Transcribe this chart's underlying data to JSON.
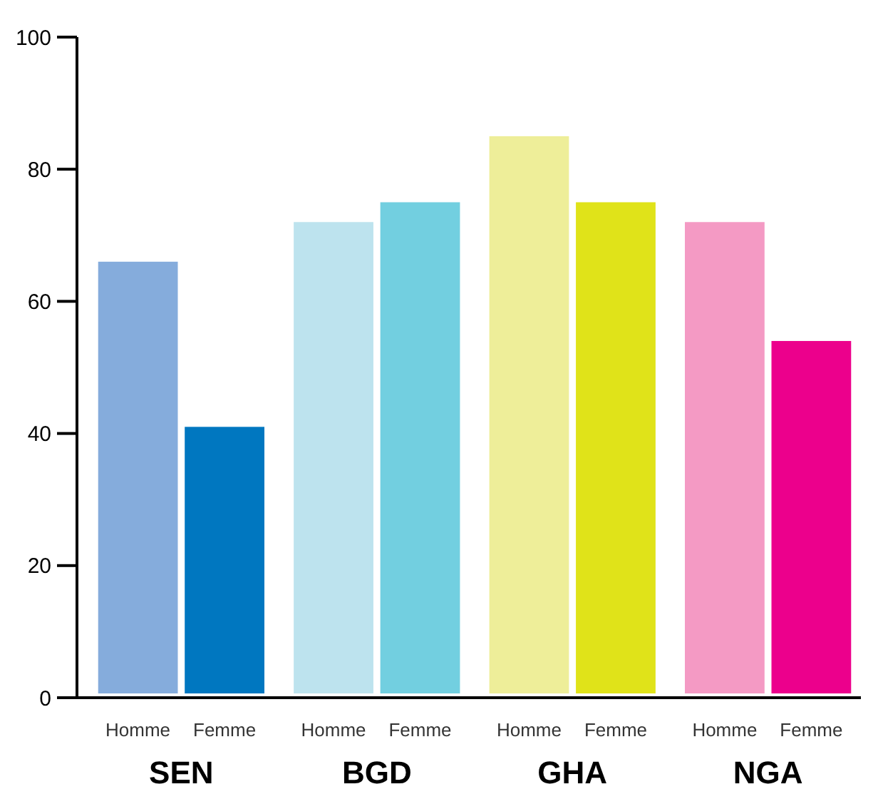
{
  "chart_data": {
    "type": "bar",
    "categories": [
      "SEN",
      "BGD",
      "GHA",
      "NGA"
    ],
    "series": [
      {
        "name": "Homme",
        "colors": [
          "#85acdc",
          "#bde3ee",
          "#eeee99",
          "#f49ac4"
        ],
        "values": [
          66,
          72,
          85,
          72
        ]
      },
      {
        "name": "Femme",
        "colors": [
          "#0077c0",
          "#72cfe0",
          "#e0e319",
          "#ec008c"
        ],
        "values": [
          41,
          75,
          75,
          54
        ]
      }
    ],
    "ylim": [
      0,
      100
    ],
    "yticks": [
      0,
      20,
      40,
      60,
      80,
      100
    ],
    "grid": false
  }
}
